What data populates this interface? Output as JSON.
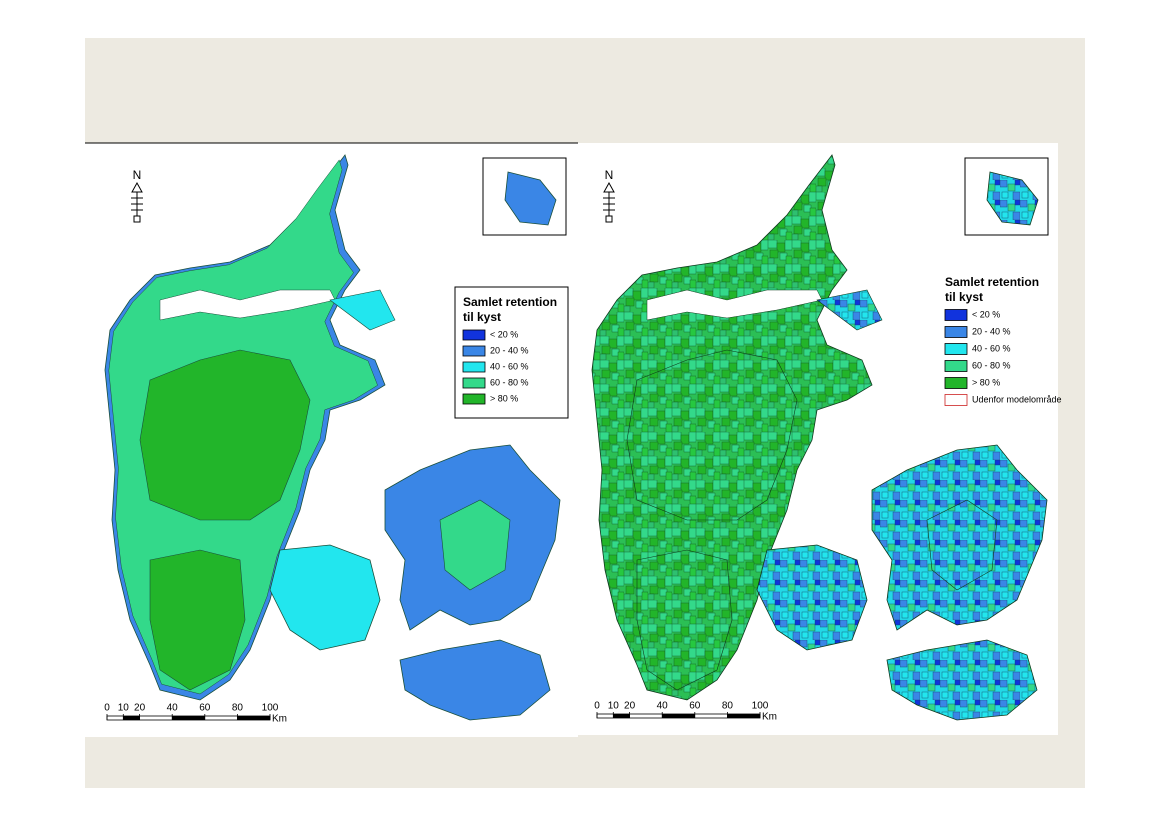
{
  "maps": [
    {
      "north": "N",
      "legend": {
        "title": [
          "Samlet retention",
          "til kyst"
        ],
        "items": [
          {
            "label": "< 20 %",
            "color": "#1133dd"
          },
          {
            "label": "20 - 40 %",
            "color": "#3a86e6"
          },
          {
            "label": "40 - 60 %",
            "color": "#22e6ee"
          },
          {
            "label": "60 - 80 %",
            "color": "#33d98a"
          },
          {
            "label": "> 80 %",
            "color": "#22b52a"
          }
        ]
      },
      "scale": {
        "ticks": [
          0,
          10,
          20,
          40,
          60,
          80,
          100
        ],
        "unit": "Km"
      }
    },
    {
      "north": "N",
      "legend": {
        "title": [
          "Samlet retention",
          "til kyst"
        ],
        "items": [
          {
            "label": "< 20 %",
            "color": "#1133dd"
          },
          {
            "label": "20 - 40 %",
            "color": "#3a86e6"
          },
          {
            "label": "40 - 60 %",
            "color": "#22e6ee"
          },
          {
            "label": "60 - 80 %",
            "color": "#33d98a"
          },
          {
            "label": "> 80 %",
            "color": "#22b52a"
          },
          {
            "label": "Udenfor modelområde",
            "color": "#ffffff"
          }
        ]
      },
      "scale": {
        "ticks": [
          0,
          10,
          20,
          40,
          60,
          80,
          100
        ],
        "unit": "Km"
      }
    }
  ]
}
